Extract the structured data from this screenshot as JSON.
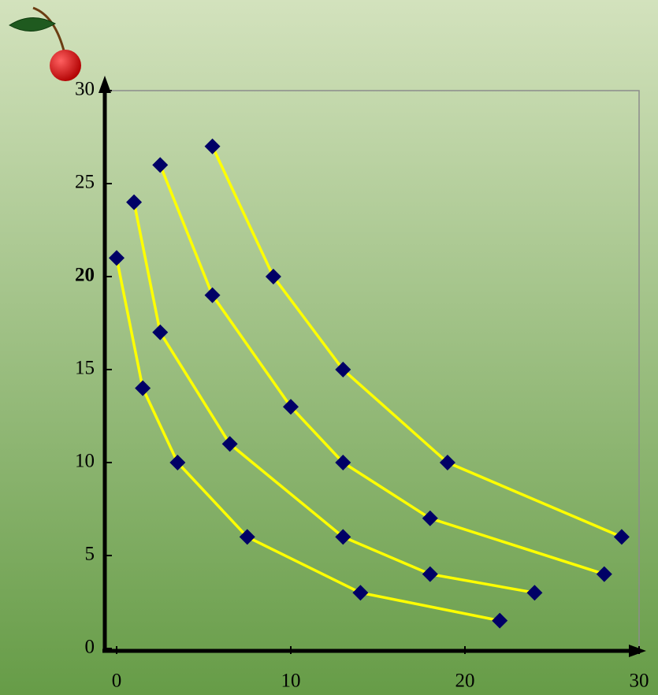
{
  "chart_data": {
    "type": "line",
    "series": [
      {
        "color": "#ffff00",
        "marker_color": "#000066",
        "x": [
          0,
          1.5,
          3.5,
          7.5,
          14,
          22
        ],
        "values": [
          21,
          14,
          10,
          6,
          3,
          1.5
        ]
      },
      {
        "color": "#ffff00",
        "marker_color": "#000066",
        "x": [
          1,
          2.5,
          6.5,
          13,
          18,
          24
        ],
        "values": [
          24,
          17,
          11,
          6,
          4,
          3
        ]
      },
      {
        "color": "#ffff00",
        "marker_color": "#000066",
        "x": [
          2.5,
          5.5,
          10,
          13,
          18,
          28
        ],
        "values": [
          26,
          19,
          13,
          10,
          7,
          4
        ]
      },
      {
        "color": "#ffff00",
        "marker_color": "#000066",
        "x": [
          5.5,
          9,
          13,
          19,
          29
        ],
        "values": [
          27,
          20,
          15,
          10,
          6
        ]
      }
    ],
    "xlim": [
      0,
      30
    ],
    "ylim": [
      0,
      30
    ],
    "xticks": [
      0,
      10,
      20,
      30
    ],
    "yticks": [
      0,
      5,
      10,
      15,
      20,
      25,
      30
    ]
  }
}
